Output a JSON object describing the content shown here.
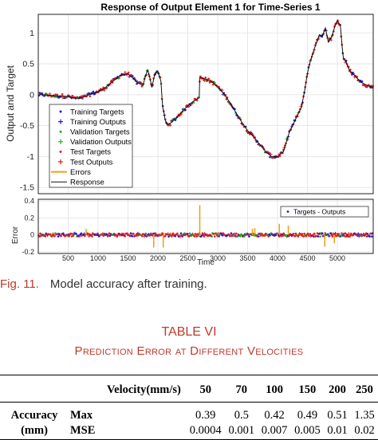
{
  "chart_data": [
    {
      "type": "line",
      "title": "Response of Output Element 1 for Time-Series 1",
      "ylabel": "Output and Target",
      "xlim": [
        0,
        5600
      ],
      "ylim": [
        -1.6,
        1.3
      ],
      "yticks": [
        1,
        0.5,
        0,
        -0.5,
        -1,
        -1.5
      ],
      "grid": true,
      "legend_position": "lower-left",
      "legend": [
        "Training Targets",
        "Training Outputs",
        "Validation Targets",
        "Validation Outputs",
        "Test Targets",
        "Test Outputs",
        "Errors",
        "Response"
      ],
      "series": [
        {
          "name": "Response",
          "x": [
            0,
            100,
            200,
            300,
            400,
            500,
            600,
            700,
            800,
            900,
            1000,
            1100,
            1200,
            1300,
            1400,
            1500,
            1580,
            1650,
            1750,
            1800,
            1830,
            1860,
            1900,
            1950,
            2000,
            2050,
            2070,
            2080,
            2100,
            2120,
            2150,
            2200,
            2300,
            2400,
            2500,
            2600,
            2690,
            2700,
            2720,
            2800,
            2900,
            3000,
            3100,
            3200,
            3300,
            3400,
            3500,
            3600,
            3700,
            3800,
            3900,
            4000,
            4100,
            4150,
            4200,
            4300,
            4400,
            4450,
            4500,
            4550,
            4600,
            4650,
            4700,
            4750,
            4800,
            4850,
            4900,
            4950,
            5000,
            5050,
            5080,
            5100,
            5150,
            5200,
            5300,
            5400,
            5500,
            5600
          ],
          "y": [
            0.0,
            0.0,
            -0.01,
            -0.02,
            -0.02,
            -0.03,
            -0.05,
            -0.06,
            -0.02,
            0.02,
            0.05,
            0.1,
            0.18,
            0.26,
            0.33,
            0.34,
            0.27,
            0.2,
            0.15,
            0.33,
            0.4,
            0.3,
            0.12,
            0.35,
            0.38,
            0.22,
            -0.08,
            -0.2,
            -0.28,
            -0.4,
            -0.48,
            -0.47,
            -0.38,
            -0.28,
            -0.18,
            -0.1,
            -0.05,
            0.28,
            0.28,
            0.25,
            0.21,
            0.13,
            0.02,
            -0.12,
            -0.28,
            -0.44,
            -0.58,
            -0.68,
            -0.8,
            -0.92,
            -1.0,
            -1.0,
            -0.92,
            -0.75,
            -0.6,
            -0.4,
            -0.2,
            0.05,
            0.35,
            0.55,
            0.7,
            0.84,
            0.97,
            0.95,
            1.08,
            0.85,
            0.92,
            1.08,
            1.2,
            1.12,
            0.78,
            0.6,
            0.52,
            0.4,
            0.3,
            0.2,
            0.15,
            0.12
          ]
        }
      ]
    },
    {
      "type": "line",
      "ylabel": "Error",
      "xlabel": "Time",
      "xlim": [
        0,
        5600
      ],
      "ylim": [
        -0.22,
        0.42
      ],
      "xticks": [
        500,
        1000,
        1500,
        2000,
        2500,
        3000,
        3500,
        4000,
        4500,
        5000
      ],
      "yticks": [
        0.4,
        0.2,
        0,
        -0.2
      ],
      "grid": true,
      "legend_position": "top-right",
      "legend": [
        "Targets - Outputs"
      ],
      "series": [
        {
          "name": "Errors",
          "x": [
            800,
            1930,
            2090,
            2700,
            3580,
            3620,
            4030,
            4180,
            4790,
            4950
          ],
          "y": [
            0.07,
            -0.15,
            -0.15,
            0.35,
            0.07,
            0.08,
            0.13,
            0.11,
            -0.14,
            -0.1
          ]
        }
      ]
    }
  ],
  "caption": {
    "fig_label": "Fig. 11.",
    "text": "Model accuracy after training."
  },
  "table": {
    "title_line1": "TABLE VI",
    "title_line2": "Prediction Error at Different Velocities",
    "header_label": "Velocity(mm/s)",
    "velocities": [
      "50",
      "70",
      "100",
      "150",
      "200",
      "250"
    ],
    "row_label_line1": "Accuracy",
    "row_label_line2": "(mm)",
    "rows": [
      {
        "metric": "Max",
        "values": [
          "0.39",
          "0.5",
          "0.42",
          "0.49",
          "0.51",
          "1.35"
        ]
      },
      {
        "metric": "MSE",
        "values": [
          "0.0004",
          "0.001",
          "0.007",
          "0.005",
          "0.01",
          "0.02"
        ]
      }
    ]
  }
}
